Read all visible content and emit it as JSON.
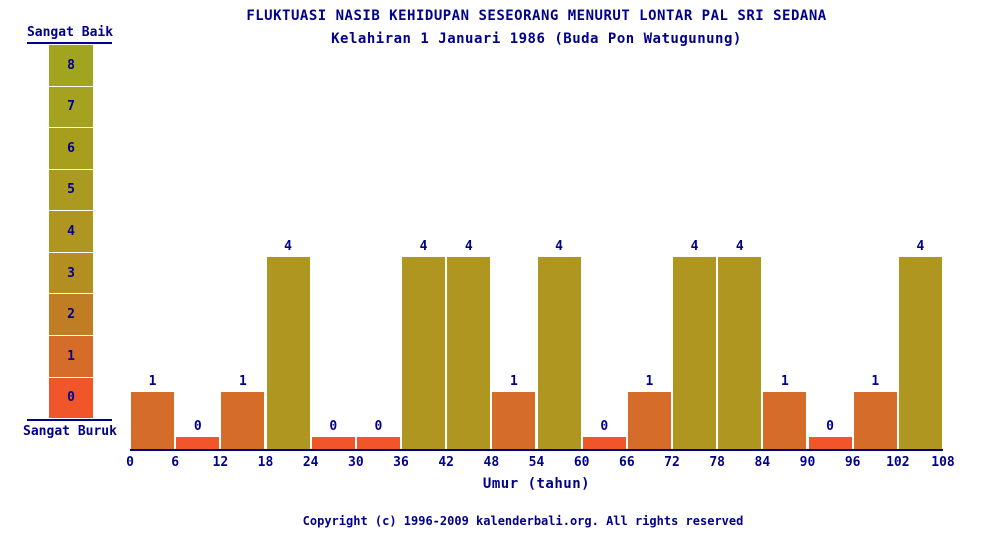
{
  "title": "FLUKTUASI NASIB KEHIDUPAN SESEORANG MENURUT LONTAR PAL SRI SEDANA",
  "subtitle": "Kelahiran 1 Januari 1986 (Buda Pon Watugunung)",
  "footer": "Copyright (c) 1996-2009 kalenderbali.org. All rights reserved",
  "colors": {
    "text": "#00008b",
    "axis": "#00008b",
    "background": "#ffffff"
  },
  "legend": {
    "top_label": "Sangat Baik",
    "bottom_label": "Sangat Buruk",
    "levels": [
      8,
      7,
      6,
      5,
      4,
      3,
      2,
      1,
      0
    ],
    "colors": {
      "8": "#a1a41e",
      "7": "#a4a21e",
      "6": "#a79e1e",
      "5": "#aa9a1f",
      "4": "#ae9620",
      "3": "#b38e20",
      "2": "#c17d24",
      "1": "#d66c29",
      "0": "#f1562b"
    }
  },
  "chart_data": {
    "type": "bar",
    "title": "FLUKTUASI NASIB KEHIDUPAN SESEORANG MENURUT LONTAR PAL SRI SEDANA",
    "subtitle": "Kelahiran 1 Januari 1986 (Buda Pon Watugunung)",
    "xlabel": "Umur (tahun)",
    "ylabel": "",
    "ylim": [
      0,
      8
    ],
    "x_ticks": [
      0,
      6,
      12,
      18,
      24,
      30,
      36,
      42,
      48,
      54,
      60,
      66,
      72,
      78,
      84,
      90,
      96,
      102,
      108
    ],
    "categories": [
      "0-6",
      "6-12",
      "12-18",
      "18-24",
      "24-30",
      "30-36",
      "36-42",
      "42-48",
      "48-54",
      "54-60",
      "60-66",
      "66-72",
      "72-78",
      "78-84",
      "84-90",
      "90-96",
      "96-102",
      "102-108"
    ],
    "values": [
      1,
      0,
      1,
      4,
      0,
      0,
      4,
      4,
      1,
      4,
      0,
      1,
      4,
      4,
      1,
      0,
      1,
      4
    ],
    "data_labels_shown": true,
    "grid": false,
    "legend_position": "left",
    "bar_color_by_value": true
  }
}
